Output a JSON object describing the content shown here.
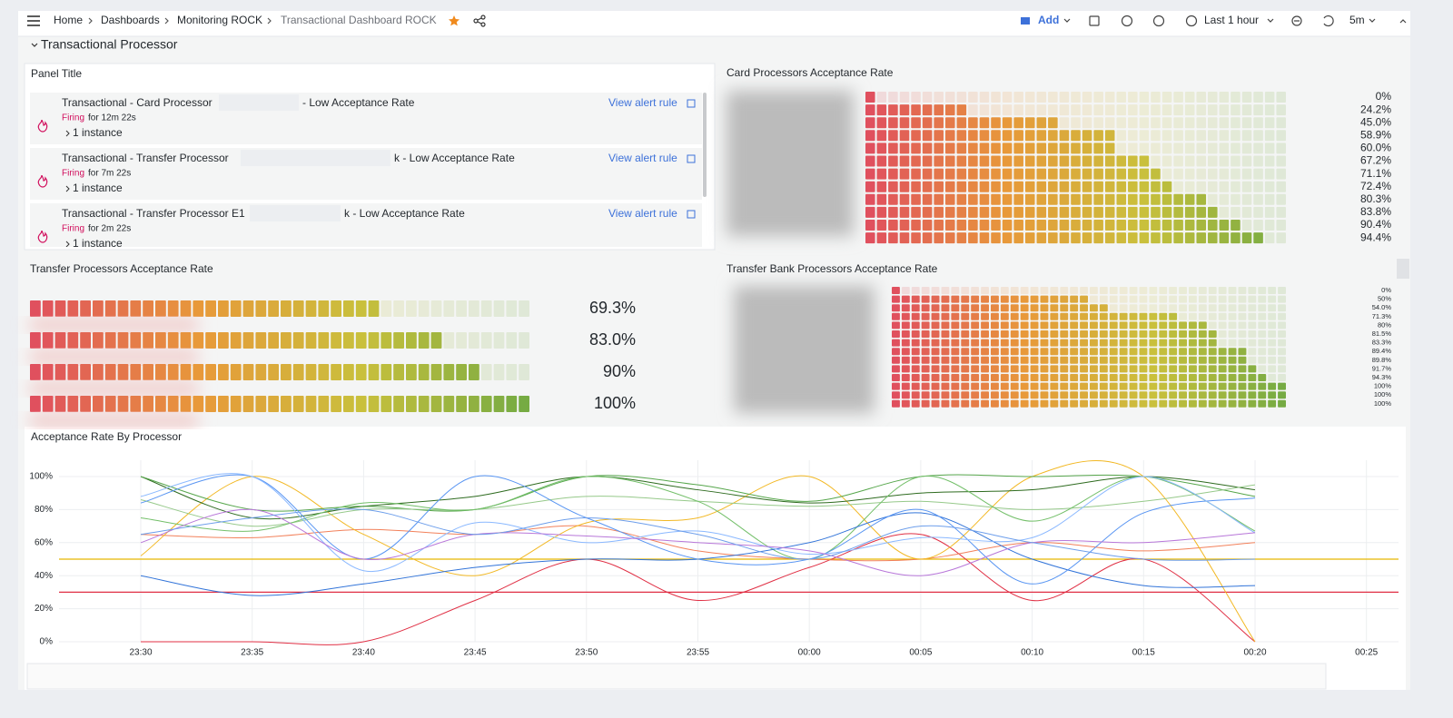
{
  "header": {
    "breadcrumb": [
      "Home",
      "Dashboards",
      "Monitoring ROCK",
      "Transactional Dashboard ROCK"
    ],
    "add": "Add",
    "time_range": "Last 1 hour",
    "refresh": "5m"
  },
  "row_title": "Transactional Processor",
  "alert_panel": {
    "title": "Panel Title",
    "alerts": [
      {
        "title": "Transactional - Card Processor",
        "suffix": "- Low Acceptance Rate",
        "state": "Firing",
        "duration": "for 12m 22s",
        "instances": "1 instance",
        "link": "View alert rule"
      },
      {
        "title": "Transactional - Transfer Processor",
        "suffix": "k - Low Acceptance Rate",
        "state": "Firing",
        "duration": "for 7m 22s",
        "instances": "1 instance",
        "link": "View alert rule"
      },
      {
        "title": "Transactional - Transfer Processor E1",
        "suffix": "k - Low Acceptance Rate",
        "state": "Firing",
        "duration": "for 2m 22s",
        "instances": "1 instance",
        "link": "View alert rule"
      }
    ]
  },
  "chart_data": [
    {
      "type": "bargauge",
      "title": "Card Processors Acceptance Rate",
      "min": 0,
      "max": 100,
      "gradient": [
        "#e0505e",
        "#e8993a",
        "#c9c03c",
        "#76ab43"
      ],
      "values": [
        0,
        24.2,
        45.0,
        58.9,
        60.0,
        67.2,
        71.1,
        72.4,
        80.3,
        83.8,
        90.4,
        94.4
      ],
      "value_labels": [
        "0%",
        "24.2%",
        "45.0%",
        "58.9%",
        "60.0%",
        "67.2%",
        "71.1%",
        "72.4%",
        "80.3%",
        "83.8%",
        "90.4%",
        "94.4%"
      ]
    },
    {
      "type": "bargauge",
      "title": "Transfer Processors Acceptance Rate",
      "min": 0,
      "max": 100,
      "gradient": [
        "#e0505e",
        "#e8993a",
        "#c9c03c",
        "#76ab43"
      ],
      "values": [
        69.3,
        83.0,
        90,
        100
      ],
      "value_labels": [
        "69.3%",
        "83.0%",
        "90%",
        "100%"
      ]
    },
    {
      "type": "bargauge",
      "title": "Transfer Bank Processors Acceptance Rate",
      "min": 0,
      "max": 100,
      "gradient": [
        "#e0505e",
        "#e8993a",
        "#c9c03c",
        "#76ab43"
      ],
      "values": [
        0,
        50,
        54.0,
        71.3,
        80,
        81.5,
        83.3,
        89.4,
        89.8,
        91.7,
        94.3,
        100,
        100,
        100
      ],
      "value_labels": [
        "0%",
        "50%",
        "54.0%",
        "71.3%",
        "80%",
        "81.5%",
        "83.3%",
        "89.4%",
        "89.8%",
        "91.7%",
        "94.3%",
        "100%",
        "100%",
        "100%"
      ]
    },
    {
      "type": "line",
      "title": "Acceptance Rate By Processor",
      "grid": true,
      "categories": [
        "23:30",
        "23:35",
        "23:40",
        "23:45",
        "23:50",
        "23:55",
        "00:00",
        "00:05",
        "00:10",
        "00:15",
        "00:20",
        "00:25"
      ],
      "ylim": [
        0,
        100
      ],
      "yticks": [
        {
          "value": 0,
          "label": "0%"
        },
        {
          "value": 20,
          "label": "20%"
        },
        {
          "value": 40,
          "label": "40%"
        },
        {
          "value": 60,
          "label": "60%"
        },
        {
          "value": 80,
          "label": "80%"
        },
        {
          "value": 100,
          "label": "100%"
        }
      ],
      "thresholds": [
        {
          "value": 50,
          "color": "#e6b800"
        },
        {
          "value": 30,
          "color": "#e02f44"
        }
      ],
      "series": [
        {
          "color": "#e02f44",
          "values": [
            0,
            0,
            0,
            25,
            50,
            25,
            45,
            65,
            25,
            50,
            0,
            null
          ]
        },
        {
          "color": "#f2815b",
          "values": [
            65,
            63,
            68,
            65,
            70,
            55,
            50,
            50,
            60,
            55,
            60,
            null
          ]
        },
        {
          "color": "#f2b824",
          "values": [
            52,
            100,
            65,
            40,
            72,
            75,
            100,
            50,
            100,
            100,
            0,
            null
          ]
        },
        {
          "color": "#2e6b1f",
          "values": [
            100,
            75,
            82,
            88,
            100,
            92,
            84,
            90,
            92,
            100,
            92,
            null
          ]
        },
        {
          "color": "#56a64b",
          "values": [
            100,
            80,
            82,
            80,
            100,
            95,
            85,
            100,
            100,
            100,
            88,
            null
          ]
        },
        {
          "color": "#96c98a",
          "values": [
            86,
            70,
            80,
            80,
            88,
            85,
            82,
            85,
            80,
            85,
            95,
            null
          ]
        },
        {
          "color": "#73bf69",
          "values": [
            75,
            67,
            84,
            80,
            100,
            85,
            50,
            100,
            73,
            100,
            67,
            null
          ]
        },
        {
          "color": "#3274d9",
          "values": [
            40,
            28,
            35,
            45,
            50,
            50,
            60,
            78,
            50,
            34,
            34,
            null
          ]
        },
        {
          "color": "#5794f2",
          "values": [
            84,
            100,
            50,
            100,
            75,
            50,
            50,
            80,
            35,
            78,
            87,
            null
          ]
        },
        {
          "color": "#8ab8ff",
          "values": [
            88,
            100,
            43,
            72,
            60,
            67,
            53,
            63,
            63,
            100,
            66,
            null
          ]
        },
        {
          "color": "#b877d9",
          "values": [
            60,
            80,
            50,
            65,
            64,
            60,
            55,
            40,
            60,
            60,
            66,
            null
          ]
        },
        {
          "color": "#6d9eeb",
          "values": [
            65,
            75,
            80,
            65,
            75,
            65,
            50,
            70,
            60,
            50,
            50,
            null
          ]
        }
      ]
    }
  ]
}
